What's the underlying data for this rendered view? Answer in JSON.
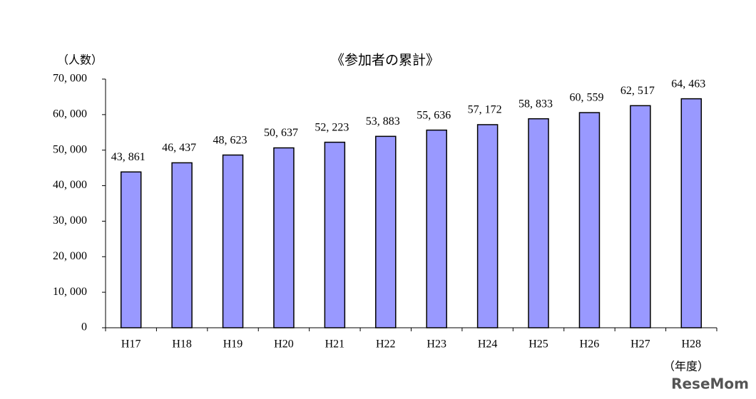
{
  "chart_data": {
    "type": "bar",
    "title": "《参加者の累計》",
    "y_label": "（人数）",
    "x_label": "（年度）",
    "categories": [
      "H17",
      "H18",
      "H19",
      "H20",
      "H21",
      "H22",
      "H23",
      "H24",
      "H25",
      "H26",
      "H27",
      "H28"
    ],
    "values": [
      43861,
      46437,
      48623,
      50637,
      52223,
      53883,
      55636,
      57172,
      58833,
      60559,
      62517,
      64463
    ],
    "value_labels": [
      "43, 861",
      "46, 437",
      "48, 623",
      "50, 637",
      "52, 223",
      "53, 883",
      "55, 636",
      "57, 172",
      "58, 833",
      "60, 559",
      "62, 517",
      "64, 463"
    ],
    "color": "#9999ff",
    "ylim": [
      0,
      70000
    ],
    "yticks": [
      0,
      {
        "value": 10000,
        "label": "10, 000"
      },
      {
        "value": 20000,
        "label": "20, 000"
      },
      {
        "value": 30000,
        "label": "30, 000"
      },
      {
        "value": 40000,
        "label": "40, 000"
      },
      {
        "value": 50000,
        "label": "50, 000"
      },
      {
        "value": 60000,
        "label": "60, 000"
      },
      {
        "value": 70000,
        "label": "70, 000"
      }
    ],
    "grid": false,
    "watermark": "ReseMom"
  }
}
